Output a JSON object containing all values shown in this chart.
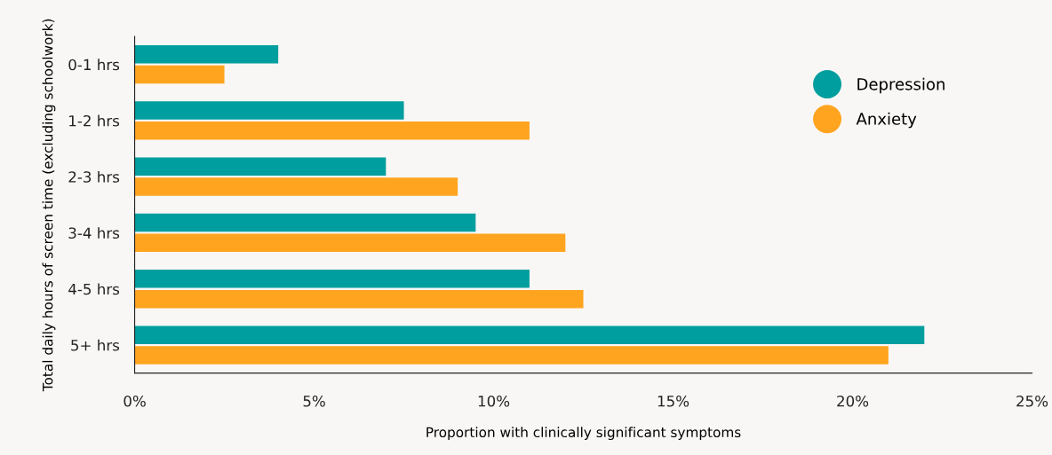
{
  "chart_data": {
    "type": "bar",
    "orientation": "horizontal",
    "categories": [
      "0-1 hrs",
      "1-2 hrs",
      "2-3 hrs",
      "3-4 hrs",
      "4-5 hrs",
      "5+ hrs"
    ],
    "series": [
      {
        "name": "Depression",
        "color": "#009e9e",
        "values": [
          4.0,
          7.5,
          7.0,
          9.5,
          11.0,
          22.0
        ]
      },
      {
        "name": "Anxiety",
        "color": "#ffa41f",
        "values": [
          2.5,
          11.0,
          9.0,
          12.0,
          12.5,
          21.0
        ]
      }
    ],
    "xlim": [
      0,
      25
    ],
    "xticks": [
      {
        "value": 0,
        "label": "0%"
      },
      {
        "value": 5,
        "label": "5%"
      },
      {
        "value": 10,
        "label": "10%"
      },
      {
        "value": 15,
        "label": "15%"
      },
      {
        "value": 20,
        "label": "20%"
      },
      {
        "value": 25,
        "label": "25%"
      }
    ],
    "xlabel": "Proportion with clinically significant symptoms",
    "ylabel": "Total daily hours of screen time (excluding schoolwork)",
    "legend": "top right",
    "grid": false
  }
}
